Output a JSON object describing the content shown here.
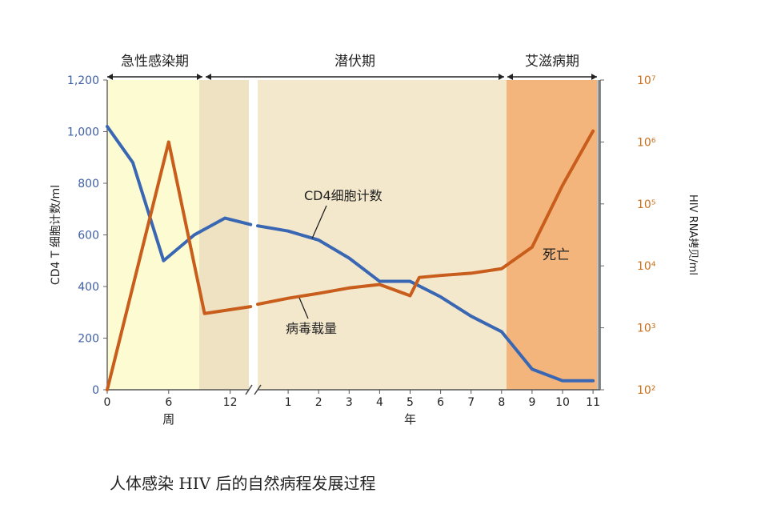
{
  "chart_data": {
    "type": "line",
    "caption": "人体感染 HIV 后的自然病程发展过程",
    "phases": [
      {
        "label": "急性感染期",
        "color": "#fdfbd2"
      },
      {
        "label": "潜伏期",
        "color": "#f3e7cc"
      },
      {
        "label": "艾滋病期",
        "color": "#f4b57c"
      }
    ],
    "early_phase_color": "#efe2c2",
    "left_axis": {
      "label": "CD4 T 细胞计数/ml",
      "ticks": [
        "0",
        "200",
        "400",
        "600",
        "800",
        "1,000",
        "1,200"
      ],
      "ylim": [
        0,
        1200
      ],
      "color": "#3e5fa3"
    },
    "right_axis": {
      "label": "HIV RNA拷贝/ml",
      "scale": "log",
      "ticks": [
        "10²",
        "10³",
        "10⁴",
        "10⁵",
        "10⁶",
        "10⁷"
      ],
      "ylim": [
        100,
        10000000
      ],
      "color": "#c8701e"
    },
    "x_weeks": {
      "label": "周",
      "ticks": [
        "0",
        "6",
        "12"
      ]
    },
    "x_years": {
      "label": "年",
      "ticks": [
        "1",
        "2",
        "3",
        "4",
        "5",
        "6",
        "7",
        "8",
        "9",
        "10",
        "11"
      ]
    },
    "series": [
      {
        "name": "CD4细胞计数",
        "axis": "left",
        "color": "#3a67b3",
        "points": [
          {
            "seg": "weeks",
            "x": 0,
            "y": 1020
          },
          {
            "seg": "weeks",
            "x": 2.5,
            "y": 880
          },
          {
            "seg": "weeks",
            "x": 5.5,
            "y": 500
          },
          {
            "seg": "weeks",
            "x": 8.5,
            "y": 600
          },
          {
            "seg": "weeks",
            "x": 11.5,
            "y": 665
          },
          {
            "seg": "weeks",
            "x": 14,
            "y": 640
          },
          {
            "seg": "years",
            "x": 0,
            "y": 635
          },
          {
            "seg": "years",
            "x": 1,
            "y": 615
          },
          {
            "seg": "years",
            "x": 2,
            "y": 580
          },
          {
            "seg": "years",
            "x": 3,
            "y": 510
          },
          {
            "seg": "years",
            "x": 4,
            "y": 420
          },
          {
            "seg": "years",
            "x": 5,
            "y": 420
          },
          {
            "seg": "years",
            "x": 6,
            "y": 360
          },
          {
            "seg": "years",
            "x": 7,
            "y": 285
          },
          {
            "seg": "years",
            "x": 8,
            "y": 225
          },
          {
            "seg": "years",
            "x": 9,
            "y": 80
          },
          {
            "seg": "years",
            "x": 10,
            "y": 35
          },
          {
            "seg": "years",
            "x": 11,
            "y": 35
          }
        ]
      },
      {
        "name": "病毒载量",
        "axis": "right",
        "color": "#c85d1c",
        "points": [
          {
            "seg": "weeks",
            "x": 0,
            "y": 100
          },
          {
            "seg": "weeks",
            "x": 6,
            "y": 1000000
          },
          {
            "seg": "weeks",
            "x": 9.5,
            "y": 1700
          },
          {
            "seg": "weeks",
            "x": 14,
            "y": 2200
          },
          {
            "seg": "years",
            "x": 0,
            "y": 2400
          },
          {
            "seg": "years",
            "x": 1,
            "y": 3000
          },
          {
            "seg": "years",
            "x": 2,
            "y": 3600
          },
          {
            "seg": "years",
            "x": 3,
            "y": 4400
          },
          {
            "seg": "years",
            "x": 4,
            "y": 5000
          },
          {
            "seg": "years",
            "x": 5,
            "y": 3300
          },
          {
            "seg": "years",
            "x": 5.3,
            "y": 6500
          },
          {
            "seg": "years",
            "x": 6,
            "y": 7000
          },
          {
            "seg": "years",
            "x": 7,
            "y": 7600
          },
          {
            "seg": "years",
            "x": 8,
            "y": 9000
          },
          {
            "seg": "years",
            "x": 9,
            "y": 20000
          },
          {
            "seg": "years",
            "x": 10,
            "y": 200000
          },
          {
            "seg": "years",
            "x": 11,
            "y": 1500000
          }
        ]
      }
    ],
    "annotations": [
      {
        "text": "CD4细胞计数"
      },
      {
        "text": "病毒载量"
      },
      {
        "text": "死亡"
      }
    ]
  }
}
